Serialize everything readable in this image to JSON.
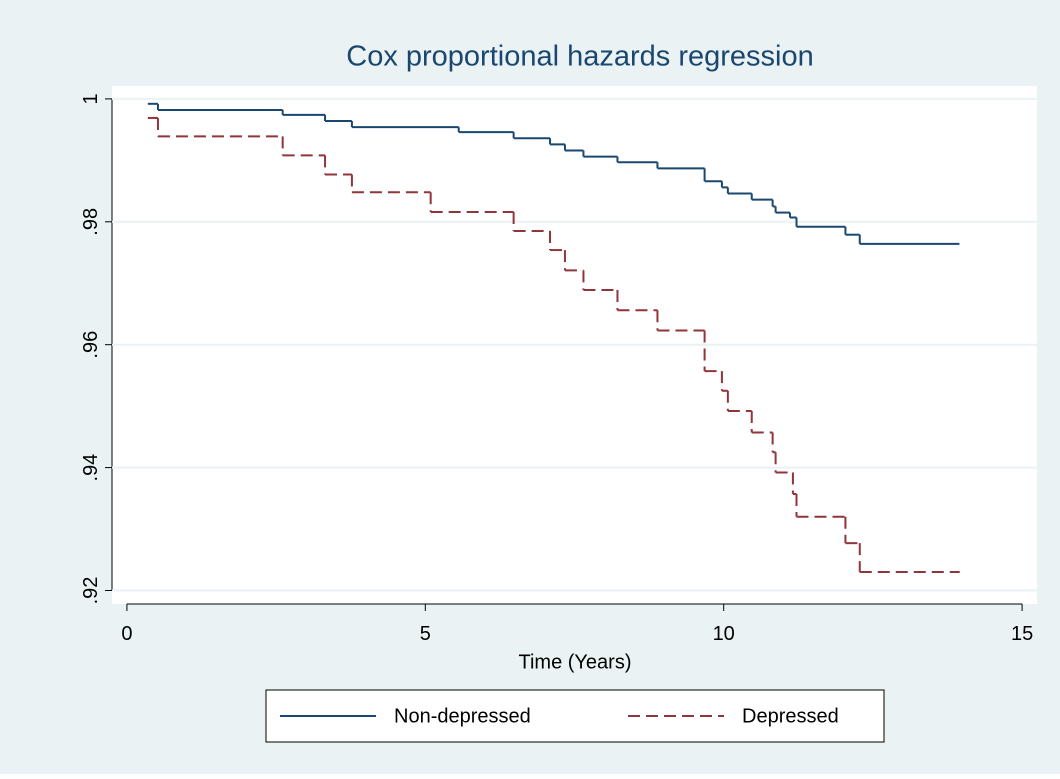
{
  "chart_data": {
    "type": "line",
    "step": true,
    "title": "Cox proportional hazards regression",
    "xlabel": "Time (Years)",
    "xlim": [
      -0.25,
      15.25
    ],
    "xticks": [
      0,
      5,
      10,
      15
    ],
    "ylim": [
      0.9178,
      1.0021
    ],
    "yticks": [
      1,
      {
        "value": 0.98,
        "label": ".98"
      },
      {
        "value": 0.96,
        "label": ".96"
      },
      {
        "value": 0.94,
        "label": ".94"
      },
      {
        "value": 0.92,
        "label": ".92"
      }
    ],
    "grid": true,
    "legend": "bottom",
    "series": [
      {
        "name": "Non-depressed",
        "color": "#1a476f",
        "dash": false,
        "x": [
          0.35,
          0.52,
          2.61,
          3.32,
          3.77,
          5.56,
          6.48,
          7.09,
          7.34,
          7.65,
          8.22,
          8.89,
          9.68,
          9.97,
          10.07,
          10.47,
          10.82,
          10.87,
          11.11,
          11.22,
          12.04,
          12.28,
          13.95
        ],
        "values": [
          0.9992,
          0.9982,
          0.9974,
          0.9964,
          0.9954,
          0.9946,
          0.9936,
          0.9926,
          0.9916,
          0.9906,
          0.9897,
          0.9887,
          0.9866,
          0.9856,
          0.9846,
          0.9836,
          0.9825,
          0.9815,
          0.9807,
          0.9792,
          0.9779,
          0.9764,
          0.9764
        ]
      },
      {
        "name": "Depressed",
        "color": "#90353b",
        "dash": true,
        "x": [
          0.35,
          0.52,
          2.61,
          3.32,
          3.77,
          5.09,
          6.48,
          7.09,
          7.34,
          7.65,
          8.22,
          8.89,
          9.68,
          9.97,
          10.07,
          10.47,
          10.82,
          10.87,
          11.16,
          11.22,
          12.04,
          12.28,
          13.95
        ],
        "values": [
          0.9969,
          0.9939,
          0.9908,
          0.9877,
          0.9848,
          0.9816,
          0.9785,
          0.9754,
          0.9721,
          0.9689,
          0.9656,
          0.9623,
          0.9557,
          0.9525,
          0.9492,
          0.9457,
          0.9425,
          0.9392,
          0.9357,
          0.932,
          0.9277,
          0.923,
          0.923
        ]
      }
    ]
  }
}
